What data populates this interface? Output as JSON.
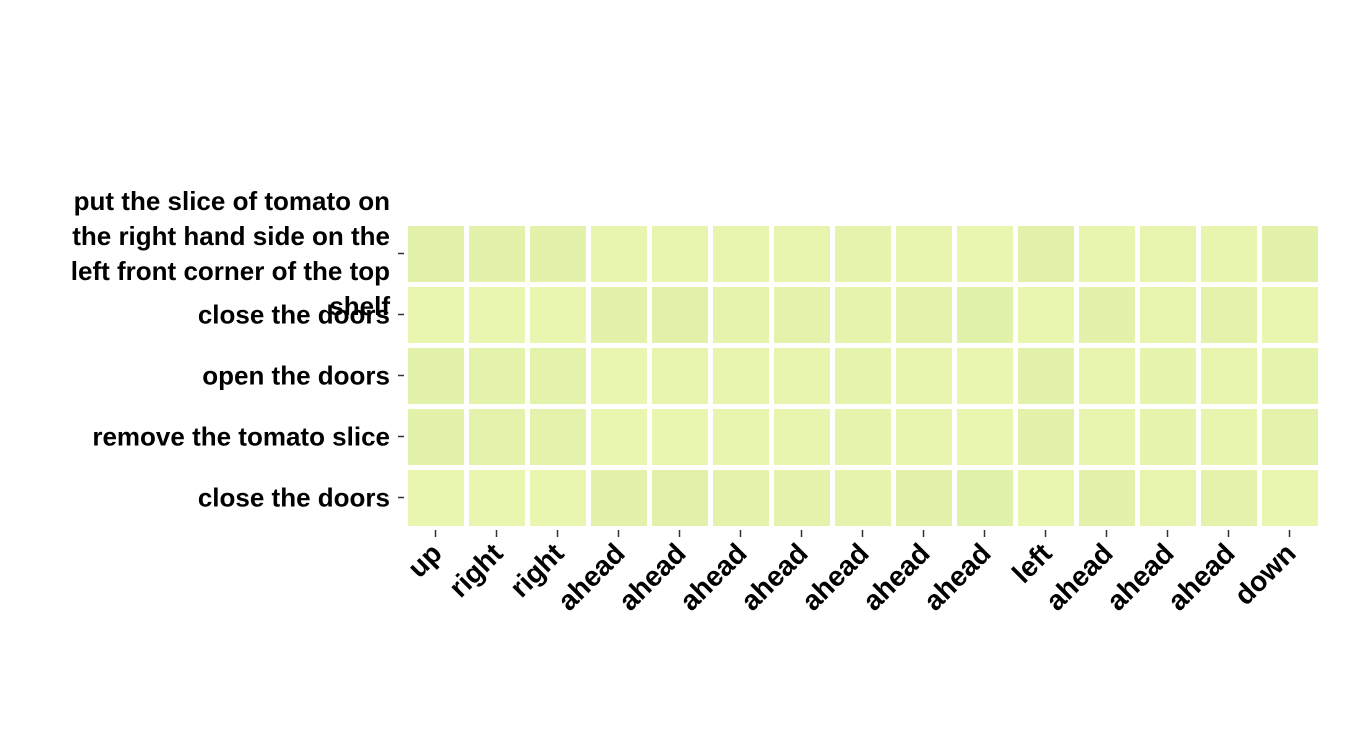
{
  "chart_data": {
    "type": "heatmap",
    "title": "",
    "xlabel": "",
    "ylabel": "",
    "x_categories": [
      "up",
      "right",
      "right",
      "ahead",
      "ahead",
      "ahead",
      "ahead",
      "ahead",
      "ahead",
      "ahead",
      "left",
      "ahead",
      "ahead",
      "ahead",
      "down"
    ],
    "y_categories": [
      "put the slice of tomato on the right hand side on the left front corner of the top shelf",
      "close the doors",
      "open the doors",
      "remove the tomato slice",
      "close the doors"
    ],
    "colorscale": {
      "low": "#eaf7b1",
      "high": "#dff0a8",
      "vmin": 0.0,
      "vmax": 1.0
    },
    "values": [
      [
        0.8,
        0.7,
        0.7,
        0.3,
        0.3,
        0.4,
        0.4,
        0.5,
        0.3,
        0.2,
        0.8,
        0.3,
        0.4,
        0.3,
        0.7
      ],
      [
        0.1,
        0.2,
        0.2,
        0.7,
        0.8,
        0.5,
        0.6,
        0.5,
        0.6,
        0.9,
        0.2,
        0.7,
        0.4,
        0.6,
        0.2
      ],
      [
        0.7,
        0.6,
        0.6,
        0.2,
        0.3,
        0.3,
        0.3,
        0.5,
        0.3,
        0.2,
        0.7,
        0.3,
        0.5,
        0.4,
        0.5
      ],
      [
        0.7,
        0.6,
        0.6,
        0.2,
        0.2,
        0.3,
        0.3,
        0.5,
        0.3,
        0.2,
        0.7,
        0.3,
        0.5,
        0.3,
        0.6
      ],
      [
        0.1,
        0.1,
        0.1,
        0.7,
        0.8,
        0.6,
        0.6,
        0.5,
        0.7,
        0.9,
        0.1,
        0.7,
        0.4,
        0.6,
        0.1
      ]
    ]
  }
}
